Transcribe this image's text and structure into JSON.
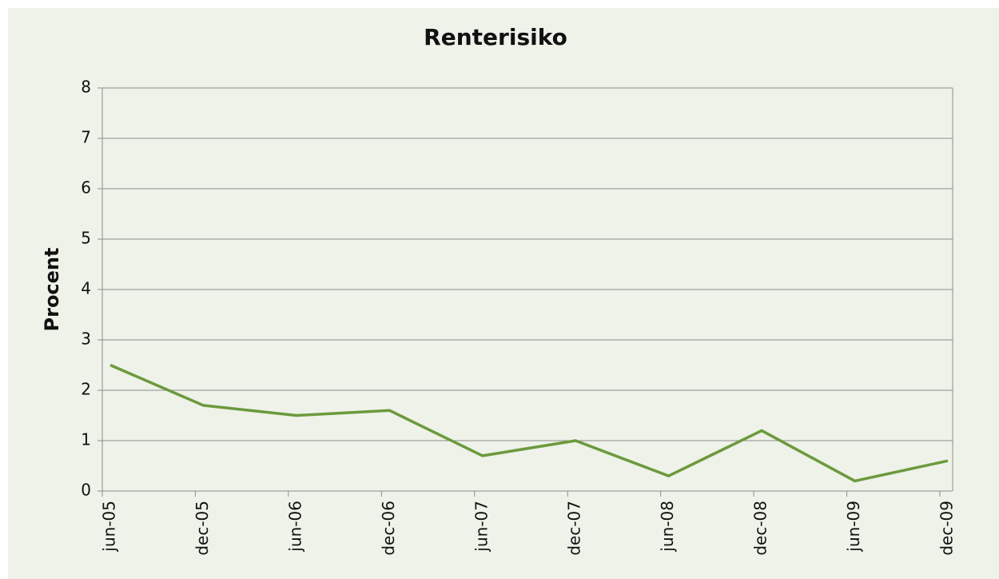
{
  "chart_data": {
    "type": "line",
    "title": "Renterisiko",
    "y_label": "Procent",
    "categories": [
      "jun-05",
      "dec-05",
      "jun-06",
      "dec-06",
      "jun-07",
      "dec-07",
      "jun-08",
      "dec-08",
      "jun-09",
      "dec-09"
    ],
    "values": [
      2.5,
      1.7,
      1.5,
      1.6,
      0.7,
      1.0,
      0.3,
      1.2,
      0.2,
      0.6
    ],
    "color": "#6b9a3c",
    "ylim": [
      0,
      8
    ],
    "yticks": [
      0,
      1,
      2,
      3,
      4,
      5,
      6,
      7,
      8
    ],
    "grid": true
  }
}
